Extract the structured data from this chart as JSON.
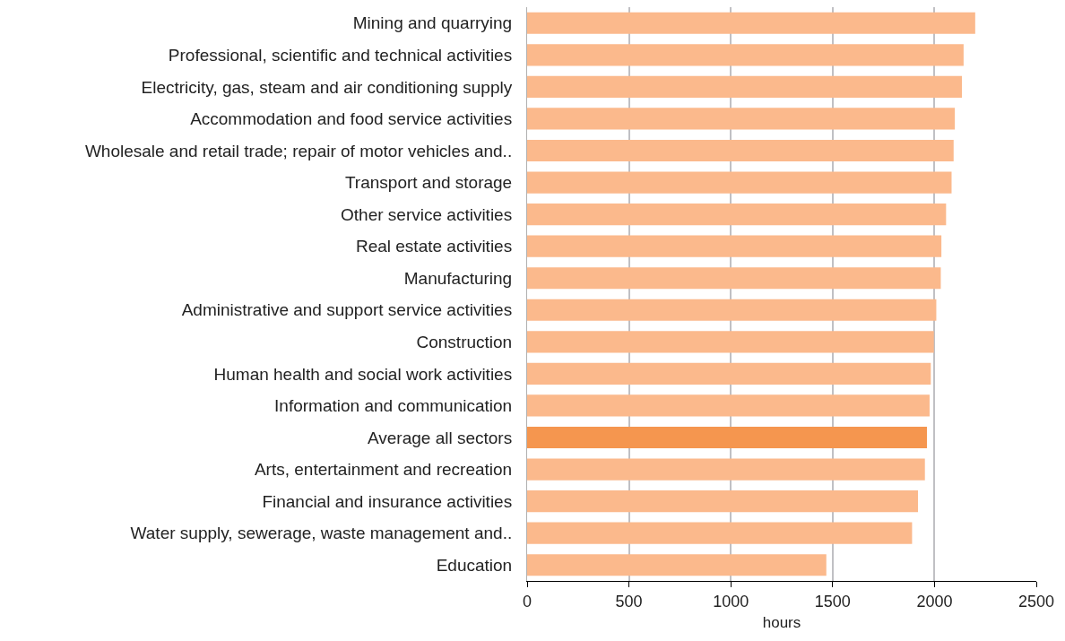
{
  "chart_data": {
    "type": "bar",
    "orientation": "horizontal",
    "xlabel": "hours",
    "categories": [
      "Mining and quarrying",
      "Professional, scientific and technical activities",
      "Electricity, gas, steam and air conditioning supply",
      "Accommodation and food service activities",
      "Wholesale and retail trade; repair of motor vehicles and..",
      "Transport and storage",
      "Other service activities",
      "Real estate activities",
      "Manufacturing",
      "Administrative and support service activities",
      "Construction",
      "Human health and social work activities",
      "Information and communication",
      "Average all sectors",
      "Arts, entertainment and recreation",
      "Financial and insurance activities",
      "Water supply, sewerage, waste management and..",
      "Education"
    ],
    "values": [
      2200,
      2143,
      2135,
      2100,
      2094,
      2084,
      2057,
      2034,
      2031,
      2009,
      1997,
      1982,
      1976,
      1963,
      1953,
      1919,
      1890,
      1469
    ],
    "colors": [
      "#fbb98c",
      "#fbb98c",
      "#fbb98c",
      "#fbb98c",
      "#fbb98c",
      "#fbb98c",
      "#fbb98c",
      "#fbb98c",
      "#fbb98c",
      "#fbb98c",
      "#fbb98c",
      "#fbb98c",
      "#fbb98c",
      "#f5964f",
      "#fbb98c",
      "#fbb98c",
      "#fbb98c",
      "#fbb98c"
    ],
    "xlim": [
      0,
      2500
    ],
    "xticks": [
      0,
      500,
      1000,
      1500,
      2000,
      2500
    ],
    "grid": "x"
  }
}
